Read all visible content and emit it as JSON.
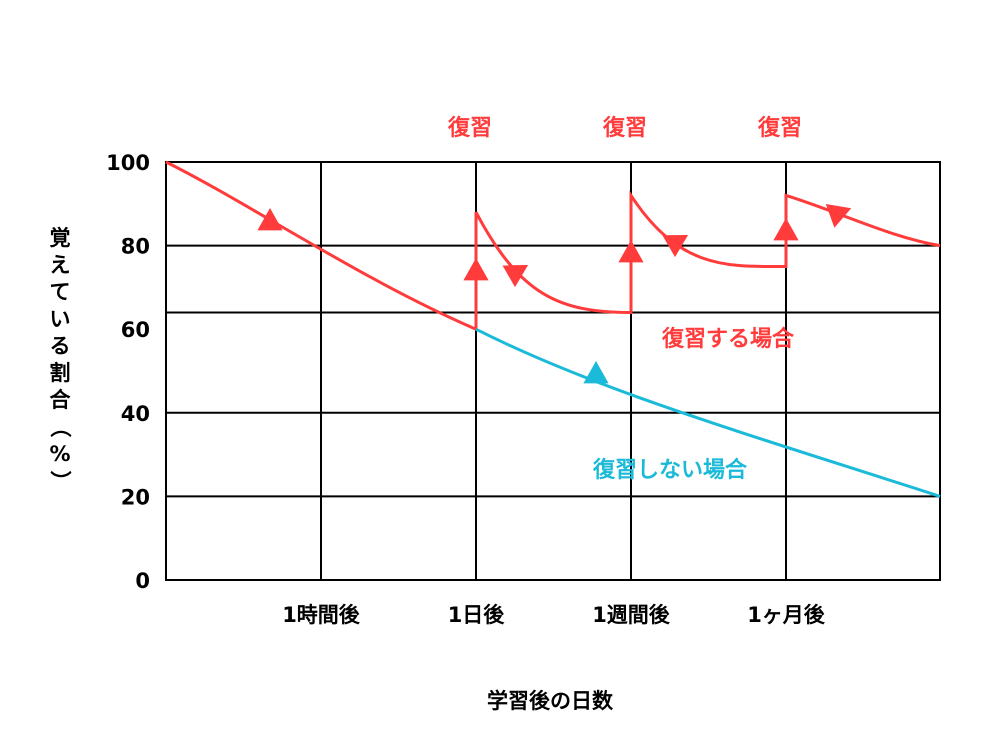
{
  "chart_data": {
    "type": "line",
    "xlabel": "学習後の日数",
    "ylabel": "覚えている割合（%）",
    "ylim": [
      0,
      100
    ],
    "yticks": [
      0,
      20,
      40,
      60,
      80,
      100
    ],
    "x_ticks": [
      "1時間後",
      "1日後",
      "1週間後",
      "1ヶ月後"
    ],
    "grid": true,
    "series": [
      {
        "name": "復習する場合",
        "color": "#ff3b3b",
        "points": [
          [
            "start",
            100
          ],
          [
            "1時間後",
            78
          ],
          [
            "1日後",
            60
          ],
          [
            "1日後",
            88
          ],
          [
            "1週間後",
            64
          ],
          [
            "1週間後",
            92
          ],
          [
            "1ヶ月後",
            75
          ],
          [
            "1ヶ月後",
            92
          ],
          [
            "end",
            80
          ]
        ]
      },
      {
        "name": "復習しない場合",
        "color": "#1bbad8",
        "points": [
          [
            "start",
            100
          ],
          [
            "1時間後",
            78
          ],
          [
            "1日後",
            60
          ],
          [
            "1週間後",
            45
          ],
          [
            "1ヶ月後",
            32
          ],
          [
            "end",
            20
          ]
        ]
      }
    ],
    "annotations": [
      "復習",
      "復習",
      "復習"
    ]
  }
}
